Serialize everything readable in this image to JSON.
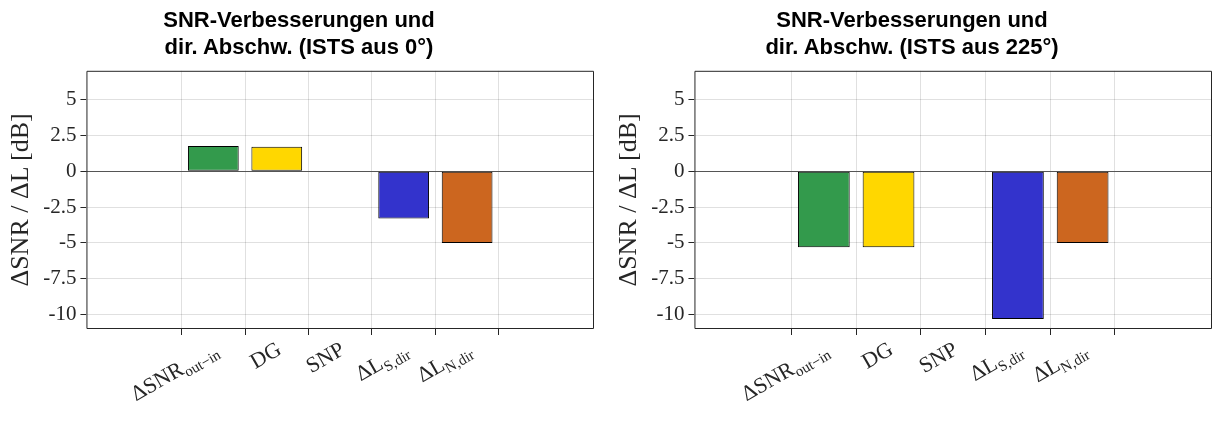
{
  "chart_data": [
    {
      "type": "bar",
      "title": "SNR-Verbesserungen und\ndir. Abschw. (ISTS aus 0°)",
      "ylabel": "ΔSNR / ΔL [dB]",
      "categories": [
        "ΔSNR$_{out−in}$",
        "DG",
        "SNP",
        "ΔL$_{S,dir}$",
        "ΔL$_{N,dir}$"
      ],
      "values": [
        1.75,
        1.7,
        0,
        -3.3,
        -5
      ],
      "colors": [
        "#339a4c",
        "#ffd700",
        "#000000",
        "#3333cc",
        "#cc661f"
      ],
      "ylim": [
        -11,
        7
      ],
      "yticks": [
        -10,
        -7.5,
        -5,
        -2.5,
        0,
        2.5,
        5
      ],
      "grid": true
    },
    {
      "type": "bar",
      "title": "SNR-Verbesserungen und\ndir. Abschw. (ISTS aus 225°)",
      "ylabel": "ΔSNR / ΔL [dB]",
      "categories": [
        "ΔSNR$_{out−in}$",
        "DG",
        "SNP",
        "ΔL$_{S,dir}$",
        "ΔL$_{N,dir}$"
      ],
      "values": [
        -5.3,
        -5.3,
        0,
        -10.3,
        -5
      ],
      "colors": [
        "#339a4c",
        "#ffd700",
        "#000000",
        "#3333cc",
        "#cc661f"
      ],
      "ylim": [
        -11,
        7
      ],
      "yticks": [
        -10,
        -7.5,
        -5,
        -2.5,
        0,
        2.5,
        5
      ],
      "grid": true
    }
  ]
}
